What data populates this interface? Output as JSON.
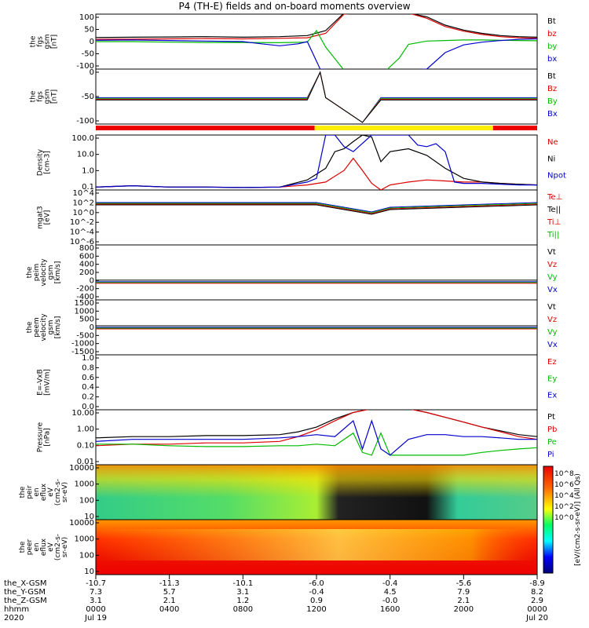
{
  "title": "P4 (TH-E) fields and on-board moments overview",
  "panels": [
    {
      "id": "fgs",
      "ylabel_lines": [
        "the",
        "fgs",
        "gsm",
        "[nT]"
      ],
      "ticks": [
        "100",
        "50",
        "0",
        "-50",
        "-100"
      ],
      "legend": [
        {
          "text": "Bt",
          "color": "#000000"
        },
        {
          "text": "bz",
          "color": "#dd0000"
        },
        {
          "text": "by",
          "color": "#00bb00"
        },
        {
          "text": "bx",
          "color": "#0000cc"
        }
      ]
    },
    {
      "id": "fgs-zoom",
      "ylabel_lines": [
        "the",
        "fgs",
        "gsm",
        "[nT]"
      ],
      "ticks": [
        "0",
        "-50",
        "-100"
      ],
      "legend": [
        {
          "text": "Bt",
          "color": "#000000"
        },
        {
          "text": "Bz",
          "color": "#dd0000"
        },
        {
          "text": "By",
          "color": "#00bb00"
        },
        {
          "text": "Bx",
          "color": "#0000cc"
        }
      ]
    },
    {
      "id": "density",
      "ylabel_lines": [
        "Density",
        "[cm-3]"
      ],
      "ticks": [
        "100.0",
        "10.0",
        "1.0",
        "0.1"
      ],
      "legend": [
        {
          "text": "Ne",
          "color": "#dd0000"
        },
        {
          "text": "Ni",
          "color": "#000000"
        },
        {
          "text": "Npot",
          "color": "#0000cc"
        }
      ]
    },
    {
      "id": "temp",
      "ylabel_lines": [
        "mgat3",
        "[eV]"
      ],
      "ticks": [
        "10^4",
        "10^2",
        "10^0",
        "10^-2",
        "10^-4",
        "10^-6"
      ],
      "legend": [
        {
          "text": "Te⊥",
          "color": "#dd0000"
        },
        {
          "text": "Te||",
          "color": "#000000"
        },
        {
          "text": "Ti⊥",
          "color": "#dd0000"
        },
        {
          "text": "Ti||",
          "color": "#00bb00"
        }
      ]
    },
    {
      "id": "peim-vel",
      "ylabel_lines": [
        "the",
        "peim",
        "velocity",
        "gsm",
        "[km/s]"
      ],
      "ticks": [
        "800",
        "600",
        "400",
        "200",
        "0",
        "-200",
        "-400"
      ],
      "legend": [
        {
          "text": "Vt",
          "color": "#000000"
        },
        {
          "text": "Vz",
          "color": "#dd0000"
        },
        {
          "text": "Vy",
          "color": "#00bb00"
        },
        {
          "text": "Vx",
          "color": "#0000cc"
        }
      ]
    },
    {
      "id": "peem-vel",
      "ylabel_lines": [
        "the",
        "peem",
        "velocity",
        "gsm",
        "[km/s]"
      ],
      "ticks": [
        "1500",
        "1000",
        "500",
        "0",
        "-500",
        "-1000",
        "-1500"
      ],
      "legend": [
        {
          "text": "Vt",
          "color": "#000000"
        },
        {
          "text": "Vz",
          "color": "#dd0000"
        },
        {
          "text": "Vy",
          "color": "#00bb00"
        },
        {
          "text": "Vx",
          "color": "#0000cc"
        }
      ]
    },
    {
      "id": "efield",
      "ylabel_lines": [
        "E=-VxB",
        "[mV/m]"
      ],
      "ticks": [
        "1.0",
        "0.8",
        "0.6",
        "0.4",
        "0.2",
        "0.0"
      ],
      "legend": [
        {
          "text": "Ez",
          "color": "#dd0000"
        },
        {
          "text": "Ey",
          "color": "#00bb00"
        },
        {
          "text": "Ex",
          "color": "#0000cc"
        }
      ]
    },
    {
      "id": "pressure",
      "ylabel_lines": [
        "Pressure",
        "[nPa]"
      ],
      "ticks": [
        "10.00",
        "1.00",
        "0.10",
        "0.01"
      ],
      "legend": [
        {
          "text": "Pt",
          "color": "#000000"
        },
        {
          "text": "Pb",
          "color": "#dd0000"
        },
        {
          "text": "Pe",
          "color": "#00bb00"
        },
        {
          "text": "Pi",
          "color": "#0000cc"
        }
      ]
    },
    {
      "id": "peir-spec",
      "ylabel_lines": [
        "the",
        "peir",
        "en",
        "eflux",
        "eV",
        "(cm2-s-",
        "sr-eV)"
      ],
      "ticks": [
        "10000",
        "1000",
        "100",
        "10"
      ],
      "legend": []
    },
    {
      "id": "peer-spec",
      "ylabel_lines": [
        "the",
        "peer",
        "en",
        "eflux",
        "eV",
        "(cm2-s-",
        "sr-eV)"
      ],
      "ticks": [
        "10000",
        "1000",
        "100",
        "10"
      ],
      "legend": []
    }
  ],
  "colorbar": {
    "label": "[eV/(cm2-s-sr-eV)] (All Qs)",
    "ticks_top": [
      "10^8",
      "10^6",
      "10^4",
      "10^2",
      "10^0"
    ],
    "ticks_bottom": [
      "10^8",
      "10^6",
      "10^4",
      "10^2",
      "10^0"
    ]
  },
  "time_axis": {
    "row_labels": [
      "the_X-GSM",
      "the_Y-GSM",
      "the_Z-GSM",
      "hhmm",
      "2020"
    ],
    "ticks": [
      {
        "x": "-10.7",
        "y": "7.3",
        "z": "3.1",
        "hhmm": "0000",
        "date": "Jul 19"
      },
      {
        "x": "-11.3",
        "y": "5.7",
        "z": "2.1",
        "hhmm": "0400",
        "date": ""
      },
      {
        "x": "-10.1",
        "y": "3.1",
        "z": "1.2",
        "hhmm": "0800",
        "date": ""
      },
      {
        "x": "-6.0",
        "y": "-0.4",
        "z": "0.9",
        "hhmm": "1200",
        "date": ""
      },
      {
        "x": "-0.4",
        "y": "4.5",
        "z": "-0.0",
        "hhmm": "1600",
        "date": ""
      },
      {
        "x": "-5.6",
        "y": "7.9",
        "z": "2.1",
        "hhmm": "2000",
        "date": ""
      },
      {
        "x": "-8.9",
        "y": "8.2",
        "z": "2.9",
        "hhmm": "0000",
        "date": "Jul 20"
      }
    ]
  },
  "mode_bar": [
    {
      "from_hour": 0,
      "to_hour": 11.9,
      "color": "#ee0000"
    },
    {
      "from_hour": 11.9,
      "to_hour": 21.6,
      "color": "#ffee00"
    },
    {
      "from_hour": 21.6,
      "to_hour": 24,
      "color": "#ee0000"
    }
  ],
  "chart_data": {
    "type": "line",
    "x_unit": "hours since 2020-07-19 00:00",
    "x_range": [
      0,
      24
    ],
    "series": [
      {
        "panel": "fgs",
        "name": "Bt",
        "color": "#000000",
        "x": [
          0,
          2,
          4,
          6,
          8,
          10,
          11.5,
          12.5,
          13.5,
          14.2,
          15,
          15.5,
          16,
          17,
          18,
          19,
          20,
          21,
          22,
          23,
          24
        ],
        "y": [
          15,
          16,
          17,
          18,
          16,
          18,
          22,
          40,
          120,
          200,
          200,
          200,
          200,
          150,
          90,
          60,
          42,
          30,
          22,
          18,
          16
        ]
      },
      {
        "panel": "fgs",
        "name": "bz",
        "color": "#dd0000",
        "x": [
          0,
          2,
          4,
          6,
          8,
          10,
          11.5,
          12.5,
          13.5,
          14.2,
          15,
          15.5,
          16,
          17,
          18,
          19,
          20,
          21,
          22,
          23,
          24
        ],
        "y": [
          8,
          9,
          10,
          11,
          10,
          12,
          14,
          30,
          100,
          200,
          200,
          200,
          200,
          140,
          85,
          55,
          38,
          26,
          18,
          14,
          12
        ]
      },
      {
        "panel": "fgs",
        "name": "by",
        "color": "#00bb00",
        "x": [
          0,
          2,
          4,
          6,
          8,
          10,
          11.5,
          12.0,
          12.5,
          13.5,
          14.2,
          15,
          15.8,
          16.5,
          17,
          18,
          19,
          20,
          21,
          22,
          23,
          24
        ],
        "y": [
          0,
          0,
          -2,
          -3,
          -3,
          -4,
          -2,
          40,
          -20,
          -200,
          -200,
          -200,
          -200,
          -60,
          -10,
          2,
          4,
          6,
          6,
          5,
          4,
          3
        ]
      },
      {
        "panel": "fgs",
        "name": "bx",
        "color": "#0000cc",
        "x": [
          0,
          2,
          4,
          6,
          8,
          9,
          10,
          11,
          11.5,
          12.2,
          13,
          14,
          15,
          16,
          17,
          18,
          19,
          20,
          21,
          22,
          23,
          24
        ],
        "y": [
          5,
          6,
          4,
          2,
          0,
          -8,
          -15,
          -8,
          0,
          -100,
          -200,
          -200,
          -200,
          -200,
          -200,
          -100,
          -40,
          -12,
          -2,
          4,
          8,
          10
        ]
      },
      {
        "panel": "density",
        "name": "Ne",
        "color": "#dd0000",
        "x": [
          0,
          2,
          4,
          6,
          8,
          10,
          11.5,
          12.5,
          13.5,
          14,
          14.5,
          15,
          15.5,
          16,
          17,
          18,
          19,
          20,
          21,
          22,
          23,
          24
        ],
        "y": [
          0.15,
          0.18,
          0.15,
          0.15,
          0.14,
          0.15,
          0.2,
          0.3,
          1.5,
          8,
          1.5,
          0.25,
          0.1,
          0.2,
          0.3,
          0.4,
          0.35,
          0.3,
          0.3,
          0.25,
          0.22,
          0.2
        ]
      },
      {
        "panel": "density",
        "name": "Ni",
        "color": "#000000",
        "x": [
          0,
          2,
          4,
          6,
          8,
          10,
          11.5,
          12.5,
          13,
          13.5,
          14,
          14.5,
          15,
          15.5,
          16,
          17,
          18,
          19,
          20,
          21,
          22,
          23,
          24
        ],
        "y": [
          0.15,
          0.18,
          0.15,
          0.15,
          0.14,
          0.15,
          0.4,
          2,
          20,
          30,
          80,
          200,
          150,
          5,
          20,
          30,
          12,
          2,
          0.5,
          0.3,
          0.25,
          0.22,
          0.2
        ]
      },
      {
        "panel": "density",
        "name": "Npot",
        "color": "#0000cc",
        "x": [
          0,
          2,
          4,
          6,
          8,
          10,
          11.5,
          12.0,
          12.5,
          13,
          13.5,
          14,
          15,
          16,
          17,
          17.5,
          18,
          18.5,
          19,
          19.5,
          20,
          21,
          22,
          23,
          24
        ],
        "y": [
          0.15,
          0.18,
          0.15,
          0.15,
          0.14,
          0.15,
          0.3,
          0.5,
          200,
          200,
          40,
          20,
          200,
          200,
          200,
          50,
          40,
          60,
          20,
          0.3,
          0.25,
          0.25,
          0.22,
          0.2,
          0.2
        ]
      },
      {
        "panel": "pressure",
        "name": "Pt",
        "color": "#000000",
        "x": [
          0,
          2,
          4,
          6,
          8,
          10,
          11,
          12,
          13,
          14,
          15,
          16,
          17,
          18,
          19,
          20,
          21,
          22,
          23,
          24
        ],
        "y": [
          0.25,
          0.3,
          0.3,
          0.35,
          0.35,
          0.4,
          0.6,
          1.2,
          4,
          10,
          30,
          30,
          30,
          10,
          5,
          2.5,
          1.2,
          0.7,
          0.4,
          0.3
        ]
      },
      {
        "panel": "pressure",
        "name": "Pb",
        "color": "#dd0000",
        "x": [
          0,
          2,
          4,
          6,
          8,
          10,
          11,
          12,
          13,
          14,
          15,
          16,
          17,
          18,
          19,
          20,
          21,
          22,
          23,
          24
        ],
        "y": [
          0.08,
          0.1,
          0.1,
          0.12,
          0.12,
          0.15,
          0.3,
          0.8,
          3,
          10,
          30,
          30,
          30,
          10,
          5,
          2.5,
          1.2,
          0.6,
          0.3,
          0.2
        ]
      },
      {
        "panel": "pressure",
        "name": "Pe",
        "color": "#00bb00",
        "x": [
          0,
          2,
          4,
          6,
          8,
          10,
          11,
          12,
          13,
          14,
          14.5,
          15,
          15.5,
          16,
          17,
          18,
          19,
          20,
          21,
          22,
          23,
          24
        ],
        "y": [
          0.1,
          0.1,
          0.08,
          0.07,
          0.07,
          0.08,
          0.08,
          0.1,
          0.08,
          0.5,
          0.03,
          0.02,
          0.5,
          0.02,
          0.02,
          0.02,
          0.02,
          0.02,
          0.03,
          0.04,
          0.05,
          0.06
        ]
      },
      {
        "panel": "pressure",
        "name": "Pi",
        "color": "#0000cc",
        "x": [
          0,
          2,
          4,
          6,
          8,
          10,
          11,
          12,
          13,
          14,
          14.5,
          15,
          15.5,
          16,
          17,
          18,
          19,
          20,
          21,
          22,
          23,
          24
        ],
        "y": [
          0.15,
          0.2,
          0.2,
          0.2,
          0.2,
          0.25,
          0.3,
          0.4,
          0.3,
          3,
          0.05,
          3,
          0.05,
          0.02,
          0.2,
          0.4,
          0.4,
          0.3,
          0.3,
          0.25,
          0.2,
          0.2
        ]
      }
    ]
  }
}
